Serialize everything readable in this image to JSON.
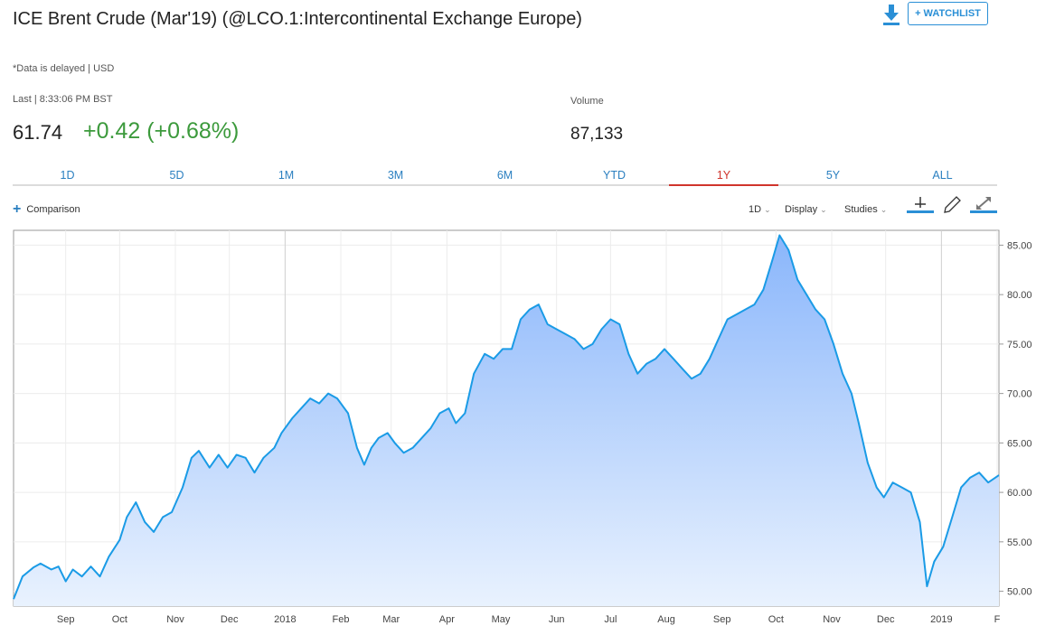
{
  "header": {
    "title": "ICE Brent Crude (Mar'19) (@LCO.1:Intercontinental Exchange Europe)",
    "delay_note": "*Data is delayed | USD",
    "watchlist_label": "+ WATCHLIST"
  },
  "quote": {
    "last_label": "Last | 8:33:06 PM BST",
    "last_price": "61.74",
    "change": "+0.42 (+0.68%)",
    "volume_label": "Volume",
    "volume": "87,133"
  },
  "range_tabs": [
    "1D",
    "5D",
    "1M",
    "3M",
    "6M",
    "YTD",
    "1Y",
    "5Y",
    "ALL"
  ],
  "active_tab": "1Y",
  "toolbar": {
    "comparison_label": "Comparison",
    "interval_label": "1D",
    "display_label": "Display",
    "studies_label": "Studies"
  },
  "colors": {
    "line": "#1a9be6",
    "positive": "#3c9a3c",
    "accent": "#2a7fc0",
    "active_tab": "#d0342c"
  },
  "chart_data": {
    "type": "area",
    "title": "",
    "xlabel": "",
    "ylabel": "",
    "x_ticks": [
      "Sep",
      "Oct",
      "Nov",
      "Dec",
      "2018",
      "Feb",
      "Mar",
      "Apr",
      "May",
      "Jun",
      "Jul",
      "Aug",
      "Sep",
      "Oct",
      "Nov",
      "Dec",
      "2019",
      "F"
    ],
    "y_ticks": [
      "50.00",
      "55.00",
      "60.00",
      "65.00",
      "70.00",
      "75.00",
      "80.00",
      "85.00"
    ],
    "ylim": [
      48.5,
      86.5
    ],
    "xlim": [
      "2017-08-03",
      "2019-02-02"
    ],
    "grid": true,
    "series": [
      {
        "values": [
          [
            "2017-08-03",
            49.2
          ],
          [
            "2017-08-08",
            51.5
          ],
          [
            "2017-08-14",
            52.4
          ],
          [
            "2017-08-18",
            52.8
          ],
          [
            "2017-08-24",
            52.2
          ],
          [
            "2017-08-28",
            52.5
          ],
          [
            "2017-09-01",
            51.0
          ],
          [
            "2017-09-05",
            52.2
          ],
          [
            "2017-09-10",
            51.5
          ],
          [
            "2017-09-15",
            52.5
          ],
          [
            "2017-09-20",
            51.5
          ],
          [
            "2017-09-25",
            53.5
          ],
          [
            "2017-10-01",
            55.2
          ],
          [
            "2017-10-05",
            57.5
          ],
          [
            "2017-10-10",
            59.0
          ],
          [
            "2017-10-15",
            57.0
          ],
          [
            "2017-10-20",
            56.0
          ],
          [
            "2017-10-25",
            57.5
          ],
          [
            "2017-10-30",
            58.0
          ],
          [
            "2017-11-05",
            60.5
          ],
          [
            "2017-11-10",
            63.5
          ],
          [
            "2017-11-14",
            64.2
          ],
          [
            "2017-11-20",
            62.5
          ],
          [
            "2017-11-25",
            63.8
          ],
          [
            "2017-11-30",
            62.5
          ],
          [
            "2017-12-05",
            63.8
          ],
          [
            "2017-12-10",
            63.5
          ],
          [
            "2017-12-15",
            62.0
          ],
          [
            "2017-12-20",
            63.5
          ],
          [
            "2017-12-26",
            64.5
          ],
          [
            "2017-12-30",
            66.0
          ],
          [
            "2018-01-05",
            67.5
          ],
          [
            "2018-01-10",
            68.5
          ],
          [
            "2018-01-15",
            69.5
          ],
          [
            "2018-01-20",
            69.0
          ],
          [
            "2018-01-25",
            70.0
          ],
          [
            "2018-01-30",
            69.5
          ],
          [
            "2018-02-05",
            68.0
          ],
          [
            "2018-02-10",
            64.5
          ],
          [
            "2018-02-14",
            62.8
          ],
          [
            "2018-02-18",
            64.5
          ],
          [
            "2018-02-22",
            65.5
          ],
          [
            "2018-02-27",
            66.0
          ],
          [
            "2018-03-03",
            65.0
          ],
          [
            "2018-03-08",
            64.0
          ],
          [
            "2018-03-13",
            64.5
          ],
          [
            "2018-03-18",
            65.5
          ],
          [
            "2018-03-23",
            66.5
          ],
          [
            "2018-03-28",
            68.0
          ],
          [
            "2018-04-02",
            68.5
          ],
          [
            "2018-04-06",
            67.0
          ],
          [
            "2018-04-11",
            68.0
          ],
          [
            "2018-04-16",
            72.0
          ],
          [
            "2018-04-22",
            74.0
          ],
          [
            "2018-04-27",
            73.5
          ],
          [
            "2018-05-02",
            74.5
          ],
          [
            "2018-05-07",
            74.5
          ],
          [
            "2018-05-12",
            77.5
          ],
          [
            "2018-05-17",
            78.5
          ],
          [
            "2018-05-22",
            79.0
          ],
          [
            "2018-05-27",
            77.0
          ],
          [
            "2018-06-01",
            76.5
          ],
          [
            "2018-06-06",
            76.0
          ],
          [
            "2018-06-11",
            75.5
          ],
          [
            "2018-06-16",
            74.5
          ],
          [
            "2018-06-21",
            75.0
          ],
          [
            "2018-06-26",
            76.5
          ],
          [
            "2018-07-01",
            77.5
          ],
          [
            "2018-07-06",
            77.0
          ],
          [
            "2018-07-11",
            74.0
          ],
          [
            "2018-07-16",
            72.0
          ],
          [
            "2018-07-21",
            73.0
          ],
          [
            "2018-07-26",
            73.5
          ],
          [
            "2018-07-31",
            74.5
          ],
          [
            "2018-08-05",
            73.5
          ],
          [
            "2018-08-10",
            72.5
          ],
          [
            "2018-08-15",
            71.5
          ],
          [
            "2018-08-20",
            72.0
          ],
          [
            "2018-08-25",
            73.5
          ],
          [
            "2018-08-30",
            75.5
          ],
          [
            "2018-09-04",
            77.5
          ],
          [
            "2018-09-09",
            78.0
          ],
          [
            "2018-09-14",
            78.5
          ],
          [
            "2018-09-19",
            79.0
          ],
          [
            "2018-09-24",
            80.5
          ],
          [
            "2018-09-29",
            83.5
          ],
          [
            "2018-10-03",
            86.0
          ],
          [
            "2018-10-08",
            84.5
          ],
          [
            "2018-10-13",
            81.5
          ],
          [
            "2018-10-18",
            80.0
          ],
          [
            "2018-10-23",
            78.5
          ],
          [
            "2018-10-28",
            77.5
          ],
          [
            "2018-11-02",
            75.0
          ],
          [
            "2018-11-07",
            72.0
          ],
          [
            "2018-11-12",
            70.0
          ],
          [
            "2018-11-16",
            67.0
          ],
          [
            "2018-11-21",
            63.0
          ],
          [
            "2018-11-26",
            60.5
          ],
          [
            "2018-11-30",
            59.5
          ],
          [
            "2018-12-05",
            61.0
          ],
          [
            "2018-12-10",
            60.5
          ],
          [
            "2018-12-15",
            60.0
          ],
          [
            "2018-12-20",
            57.0
          ],
          [
            "2018-12-24",
            50.5
          ],
          [
            "2018-12-28",
            53.0
          ],
          [
            "2019-01-02",
            54.5
          ],
          [
            "2019-01-07",
            57.5
          ],
          [
            "2019-01-12",
            60.5
          ],
          [
            "2019-01-17",
            61.5
          ],
          [
            "2019-01-22",
            62.0
          ],
          [
            "2019-01-27",
            61.0
          ],
          [
            "2019-02-02",
            61.74
          ]
        ]
      }
    ]
  }
}
